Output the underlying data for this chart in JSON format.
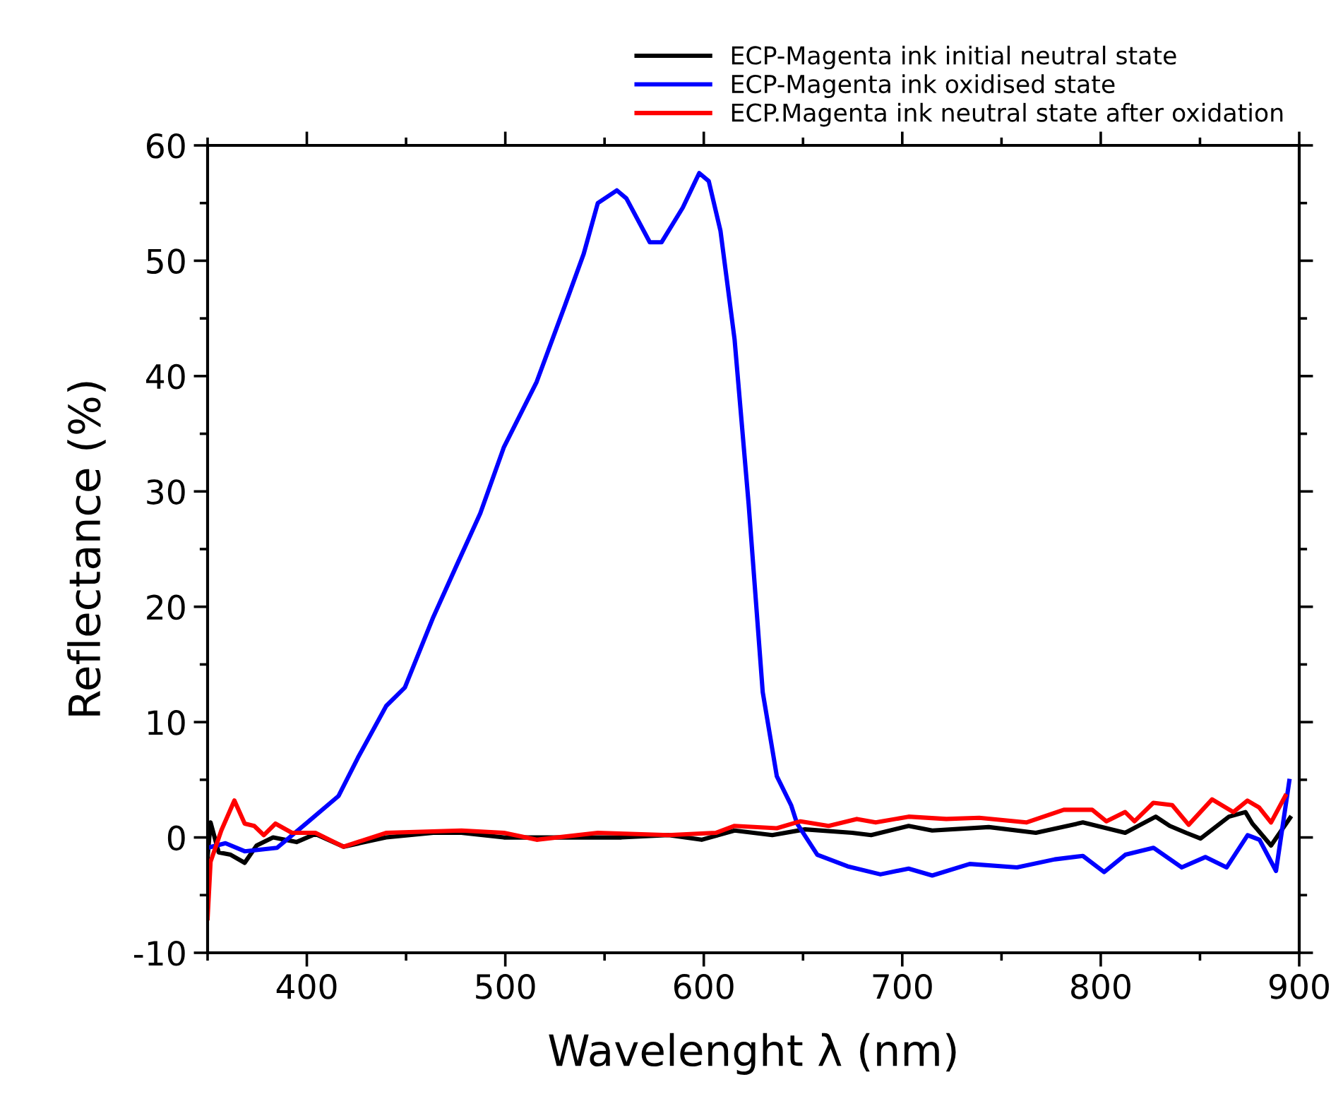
{
  "chart_data": {
    "type": "line",
    "xlabel": "Wavelenght λ (nm)",
    "ylabel": "Reflectance (%)",
    "xlim": [
      350,
      900
    ],
    "ylim": [
      -10,
      60
    ],
    "xticks": [
      400,
      500,
      600,
      700,
      800,
      900
    ],
    "yticks": [
      -10,
      0,
      10,
      20,
      30,
      40,
      50,
      60
    ],
    "grid": false,
    "legend": "top right",
    "line_style": "solid",
    "marker": "none",
    "series": [
      {
        "name": "ECP-Magenta ink initial neutral state",
        "color": "#000000",
        "x": [
          350,
          351.5,
          355.6,
          361.6,
          368.7,
          374.7,
          383,
          394.8,
          404.3,
          418.5,
          439.9,
          463.7,
          477.9,
          499.3,
          525.3,
          558.5,
          582.2,
          598.9,
          615.5,
          634.5,
          651,
          674.8,
          684.3,
          703.2,
          715.1,
          743.6,
          767.3,
          791,
          812.3,
          827.7,
          834.8,
          843,
          850.3,
          864.6,
          872.9,
          876.4,
          885.8,
          895.4
        ],
        "values": [
          -1.7,
          1.3,
          -1.3,
          -1.5,
          -2.2,
          -0.7,
          0,
          -0.4,
          0.3,
          -0.8,
          0,
          0.4,
          0.4,
          0,
          0,
          0,
          0.2,
          -0.2,
          0.6,
          0.2,
          0.7,
          0.4,
          0.2,
          1.0,
          0.6,
          0.9,
          0.4,
          1.3,
          0.4,
          1.8,
          1.0,
          0.4,
          -0.1,
          1.8,
          2.2,
          1.2,
          -0.7,
          1.7
        ]
      },
      {
        "name": "ECP-Magenta ink oxidised state",
        "color": "#0000ff",
        "x": [
          350,
          359,
          368.7,
          385,
          399.6,
          416,
          425.7,
          440,
          449.4,
          463.7,
          475.5,
          487.4,
          499.2,
          515.8,
          530,
          539.5,
          546.6,
          556.2,
          561,
          572.8,
          578.7,
          589.4,
          597.7,
          602.5,
          608.4,
          615.5,
          622.6,
          629.7,
          636.8,
          644,
          647,
          657.2,
          672.4,
          689,
          703.2,
          715.1,
          734,
          757.8,
          776.8,
          791,
          801.7,
          812.4,
          826.6,
          840.8,
          852.7,
          863.4,
          874,
          880,
          888.3,
          895
        ],
        "values": [
          -0.9,
          -0.5,
          -1.2,
          -0.9,
          1.2,
          3.6,
          6.9,
          11.4,
          13.0,
          19.1,
          23.6,
          28.1,
          33.8,
          39.5,
          46.1,
          50.6,
          55.0,
          56.1,
          55.4,
          51.6,
          51.6,
          54.6,
          57.6,
          56.9,
          52.6,
          43.2,
          28.9,
          12.6,
          5.3,
          2.8,
          1.2,
          -1.5,
          -2.5,
          -3.2,
          -2.7,
          -3.3,
          -2.3,
          -2.6,
          -1.9,
          -1.6,
          -3.0,
          -1.5,
          -0.9,
          -2.6,
          -1.7,
          -2.6,
          0.2,
          -0.2,
          -2.9,
          4.9
        ]
      },
      {
        "name": "ECP.Magenta ink neutral state after oxidation",
        "color": "#ff0000",
        "x": [
          350,
          351.5,
          356.9,
          363.5,
          368.7,
          373.5,
          378.3,
          384.2,
          392.5,
          404.3,
          418.5,
          439.9,
          477.9,
          499.3,
          515.8,
          546.6,
          582.2,
          606,
          615.5,
          636.8,
          648.7,
          662.9,
          677.1,
          686.6,
          703.2,
          722.2,
          738.8,
          762.5,
          781.4,
          795.7,
          802.8,
          812.3,
          817,
          826.5,
          836,
          844.3,
          856.1,
          866.8,
          873.9,
          879.8,
          885.8,
          893
        ],
        "values": [
          -7,
          -2.1,
          0.6,
          3.2,
          1.2,
          1,
          0.2,
          1.2,
          0.4,
          0.4,
          -0.8,
          0.4,
          0.6,
          0.4,
          -0.2,
          0.4,
          0.2,
          0.4,
          1.0,
          0.8,
          1.4,
          1.0,
          1.6,
          1.3,
          1.8,
          1.6,
          1.7,
          1.3,
          2.4,
          2.4,
          1.4,
          2.2,
          1.4,
          3.0,
          2.8,
          1.1,
          3.3,
          2.2,
          3.2,
          2.6,
          1.3,
          3.6
        ]
      }
    ]
  }
}
